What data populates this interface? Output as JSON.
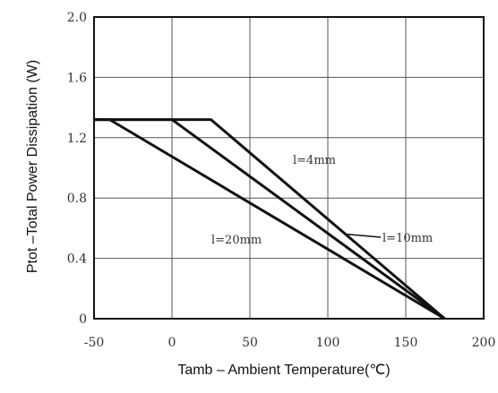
{
  "chart_data": {
    "type": "line",
    "xlabel": "Tamb – Ambient Temperature(℃)",
    "ylabel": "Ptot –Total Power Dissipation (W)",
    "xlim": [
      -50,
      200
    ],
    "ylim": [
      0,
      2.0
    ],
    "x_ticks": [
      "-50",
      "0",
      "50",
      "100",
      "150",
      "200"
    ],
    "y_ticks": [
      "0",
      "0.4",
      "0.8",
      "1.2",
      "1.6",
      "2.0"
    ],
    "grid": true,
    "series": [
      {
        "name": "l=4mm",
        "x": [
          -50,
          25,
          175
        ],
        "y": [
          1.32,
          1.32,
          0
        ]
      },
      {
        "name": "l=10mm",
        "x": [
          -50,
          0,
          175
        ],
        "y": [
          1.32,
          1.32,
          0
        ]
      },
      {
        "name": "l=20mm",
        "x": [
          -50,
          -40,
          175
        ],
        "y": [
          1.32,
          1.32,
          0
        ]
      }
    ],
    "annotations": [
      "l=4mm",
      "l=10mm",
      "l=20mm"
    ]
  }
}
